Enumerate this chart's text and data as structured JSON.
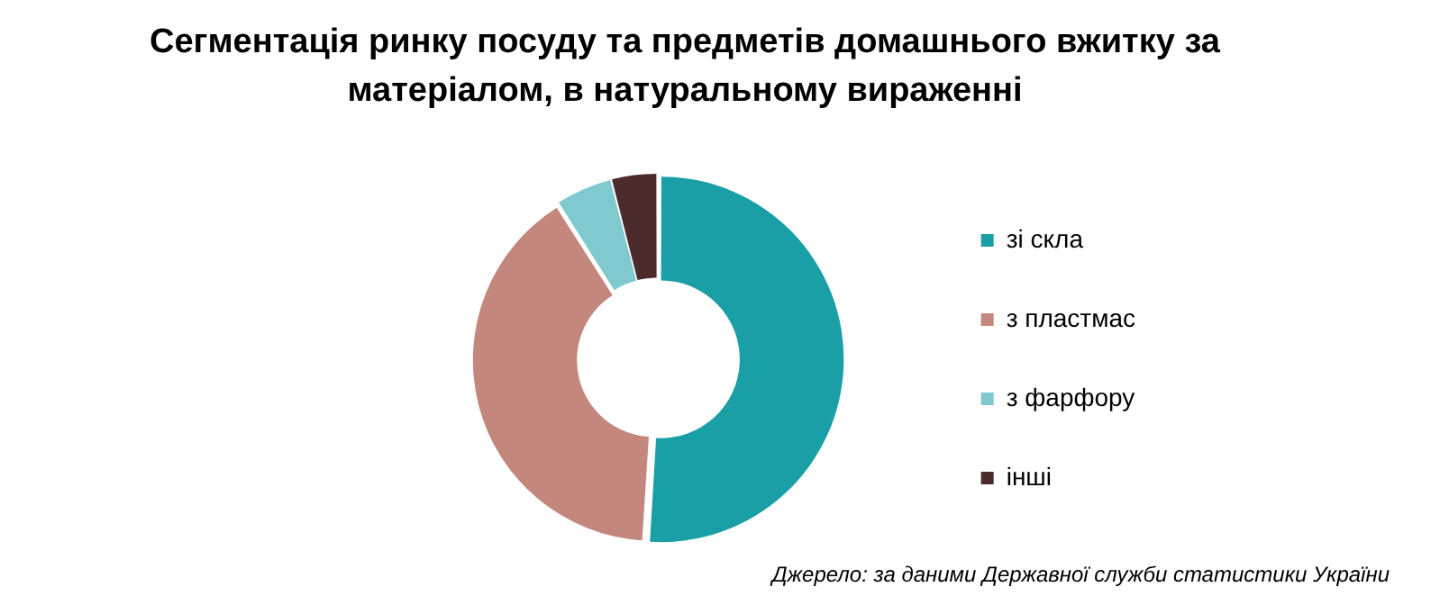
{
  "chart_data": {
    "type": "donut",
    "title": "Сегментація ринку посуду та предметів домашнього вжитку за матеріалом, в натуральному вираженні",
    "categories": [
      "зі скла",
      "з пластмас",
      "з фарфору",
      "інші"
    ],
    "values": [
      51,
      40,
      5,
      4
    ],
    "colors": [
      "#1a9fa6",
      "#c4877d",
      "#7fc9cf",
      "#4b2b2b"
    ],
    "legend": "right",
    "annotations": [
      "Джерело: за даними Державної служби статистики України"
    ]
  }
}
